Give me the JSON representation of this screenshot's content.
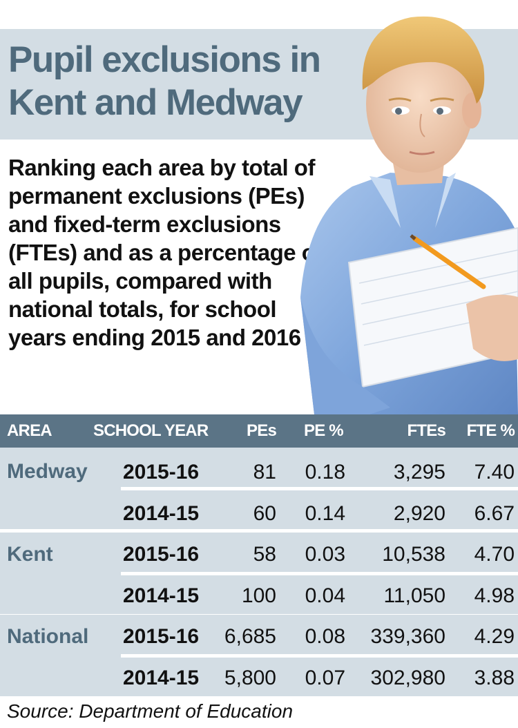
{
  "title": "Pupil exclusions in Kent and Medway",
  "subtitle": "Ranking each area by total of permanent exclusions (PEs) and fixed-term exclusions (FTEs) and as a percentage of all pupils, compared with national totals, for school years ending 2015 and 2016",
  "photo": {
    "subject": "boy-with-notebook-photo"
  },
  "colors": {
    "title": "#4f6a7c",
    "band": "#d3dde4",
    "header": "#5b7486"
  },
  "table": {
    "headers": [
      "AREA",
      "SCHOOL YEAR",
      "PEs",
      "PE %",
      "FTEs",
      "FTE %"
    ],
    "groups": [
      {
        "area": "Medway",
        "rows": [
          {
            "year": "2015-16",
            "pes": "81",
            "pe_pct": "0.18",
            "ftes": "3,295",
            "fte_pct": "7.40"
          },
          {
            "year": "2014-15",
            "pes": "60",
            "pe_pct": "0.14",
            "ftes": "2,920",
            "fte_pct": "6.67"
          }
        ]
      },
      {
        "area": "Kent",
        "rows": [
          {
            "year": "2015-16",
            "pes": "58",
            "pe_pct": "0.03",
            "ftes": "10,538",
            "fte_pct": "4.70"
          },
          {
            "year": "2014-15",
            "pes": "100",
            "pe_pct": "0.04",
            "ftes": "11,050",
            "fte_pct": "4.98"
          }
        ]
      },
      {
        "area": "National",
        "rows": [
          {
            "year": "2015-16",
            "pes": "6,685",
            "pe_pct": "0.08",
            "ftes": "339,360",
            "fte_pct": "4.29"
          },
          {
            "year": "2014-15",
            "pes": "5,800",
            "pe_pct": "0.07",
            "ftes": "302,980",
            "fte_pct": "3.88"
          }
        ]
      }
    ]
  },
  "source": "Source: Department of Education"
}
